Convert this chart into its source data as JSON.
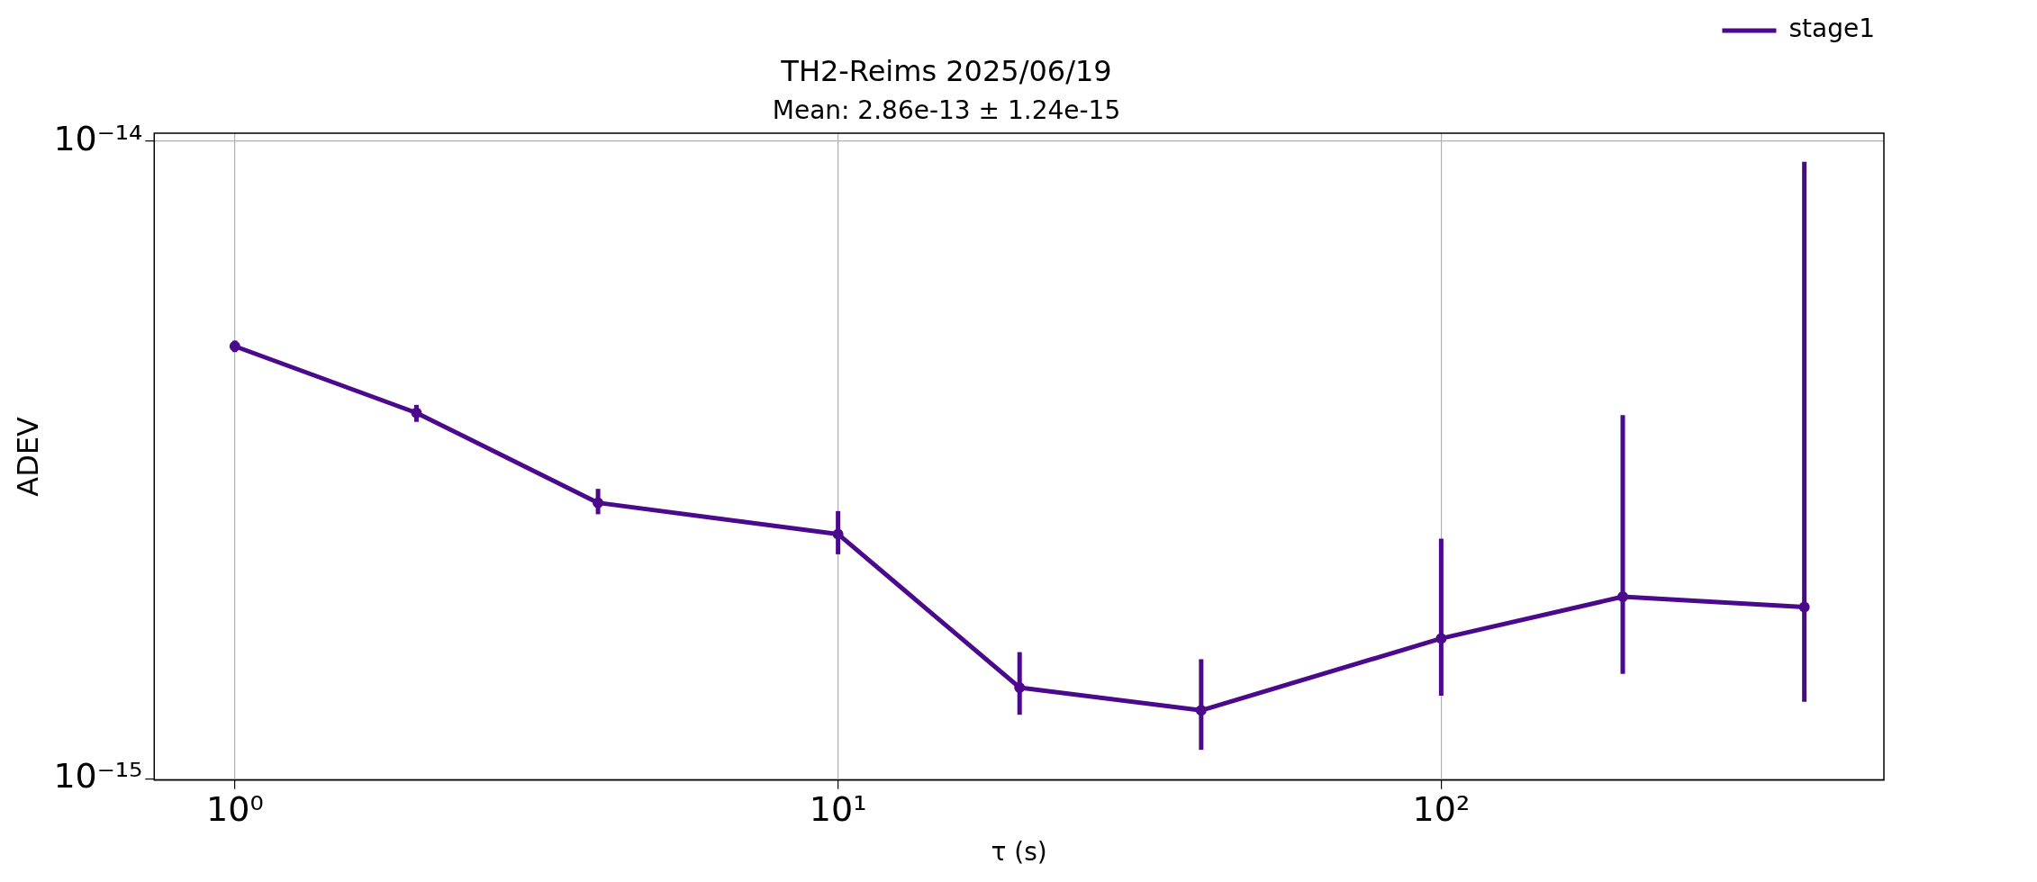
{
  "chart_data": {
    "type": "line",
    "title": "TH2-Reims 2025/06/19",
    "subtitle": "Mean: 2.86e-13 ± 1.24e-15",
    "xlabel": "τ (s)",
    "ylabel": "ADEV",
    "x": [
      1,
      2,
      4,
      10,
      20,
      40,
      100,
      200,
      400
    ],
    "series": [
      {
        "name": "stage1",
        "color": "#4b0a8c",
        "values": [
          4.77e-15,
          3.75e-15,
          2.71e-15,
          2.42e-15,
          1.39e-15,
          1.28e-15,
          1.66e-15,
          1.93e-15,
          1.86e-15
        ],
        "errors": [
          [
            4.67e-15,
            4.87e-15
          ],
          [
            3.63e-15,
            3.86e-15
          ],
          [
            2.6e-15,
            2.85e-15
          ],
          [
            2.25e-15,
            2.63e-15
          ],
          [
            1.26e-15,
            1.58e-15
          ],
          [
            1.11e-15,
            1.54e-15
          ],
          [
            1.35e-15,
            2.38e-15
          ],
          [
            1.46e-15,
            3.72e-15
          ],
          [
            1.32e-15,
            9.29e-15
          ]
        ]
      }
    ],
    "log": "xy",
    "xlim": [
      0.735,
      542
    ],
    "ylim": [
      9.95e-16,
      1.03e-14
    ],
    "xticks": [
      {
        "value": 1,
        "label": "10⁰"
      },
      {
        "value": 10,
        "label": "10¹"
      },
      {
        "value": 100,
        "label": "10²"
      }
    ],
    "yticks": [
      {
        "value": 1e-15,
        "label": "10⁻¹⁵"
      },
      {
        "value": 1e-14,
        "label": "10⁻¹⁴"
      }
    ],
    "grid": true,
    "legend": "top right",
    "marker": "circle",
    "line_style": "solid"
  }
}
